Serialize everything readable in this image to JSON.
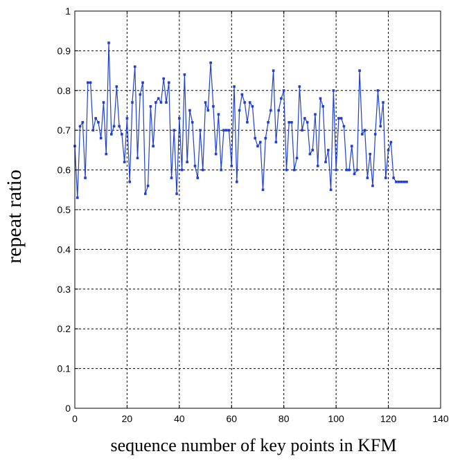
{
  "chart_data": {
    "type": "line",
    "title": "",
    "xlabel": "sequence number of key points in KFM",
    "ylabel": "repeat ratio",
    "xlim": [
      0,
      140
    ],
    "ylim": [
      0,
      1
    ],
    "xticks": [
      0,
      20,
      40,
      60,
      80,
      100,
      120,
      140
    ],
    "yticks": [
      0,
      0.1,
      0.2,
      0.3,
      0.4,
      0.5,
      0.6,
      0.7,
      0.8,
      0.9,
      1
    ],
    "xtick_labels": [
      "0",
      "20",
      "40",
      "60",
      "80",
      "100",
      "120",
      "140"
    ],
    "ytick_labels": [
      "0",
      "0.1",
      "0.2",
      "0.3",
      "0.4",
      "0.5",
      "0.6",
      "0.7",
      "0.8",
      "0.9",
      "1"
    ],
    "grid": true,
    "line_color": "#1f3fd0",
    "series": [
      {
        "marker": "square",
        "x": [
          0,
          1,
          2,
          3,
          4,
          5,
          6,
          7,
          8,
          9,
          10,
          11,
          12,
          13,
          14,
          15,
          16,
          17,
          18,
          19,
          20,
          21,
          22,
          23,
          24,
          25,
          26,
          27,
          28,
          29,
          30,
          31,
          32,
          33,
          34,
          35,
          36,
          37,
          38,
          39,
          40,
          41,
          42,
          43,
          44,
          45,
          46,
          47,
          48,
          49,
          50,
          51,
          52,
          53,
          54,
          55,
          56,
          57,
          58,
          59,
          60,
          61,
          62,
          63,
          64,
          65,
          66,
          67,
          68,
          69,
          70,
          71,
          72,
          73,
          74,
          75,
          76,
          77,
          78,
          79,
          80,
          81,
          82,
          83,
          84,
          85,
          86,
          87,
          88,
          89,
          90,
          91,
          92,
          93,
          94,
          95,
          96,
          97,
          98,
          99,
          100,
          101,
          102,
          103,
          104,
          105,
          106,
          107,
          108,
          109,
          110,
          111,
          112,
          113,
          114,
          115,
          116,
          117,
          118,
          119,
          120,
          121,
          122,
          123,
          124,
          125,
          126,
          127
        ],
        "values": [
          0.66,
          0.53,
          0.71,
          0.72,
          0.58,
          0.82,
          0.82,
          0.7,
          0.73,
          0.72,
          0.68,
          0.77,
          0.64,
          0.92,
          0.69,
          0.71,
          0.81,
          0.71,
          0.69,
          0.62,
          0.73,
          0.57,
          0.77,
          0.86,
          0.63,
          0.79,
          0.82,
          0.54,
          0.56,
          0.76,
          0.66,
          0.77,
          0.78,
          0.77,
          0.83,
          0.77,
          0.82,
          0.58,
          0.7,
          0.54,
          0.73,
          0.6,
          0.84,
          0.62,
          0.75,
          0.72,
          0.61,
          0.58,
          0.7,
          0.6,
          0.77,
          0.75,
          0.87,
          0.76,
          0.64,
          0.74,
          0.6,
          0.7,
          0.7,
          0.7,
          0.61,
          0.81,
          0.57,
          0.75,
          0.79,
          0.77,
          0.72,
          0.77,
          0.76,
          0.68,
          0.66,
          0.67,
          0.55,
          0.68,
          0.72,
          0.75,
          0.85,
          0.67,
          0.75,
          0.78,
          0.8,
          0.6,
          0.72,
          0.72,
          0.6,
          0.63,
          0.81,
          0.7,
          0.73,
          0.72,
          0.64,
          0.65,
          0.74,
          0.61,
          0.78,
          0.76,
          0.62,
          0.65,
          0.55,
          0.8,
          0.6,
          0.73,
          0.73,
          0.71,
          0.6,
          0.6,
          0.66,
          0.59,
          0.6,
          0.85,
          0.69,
          0.7,
          0.58,
          0.64,
          0.56,
          0.69,
          0.8,
          0.71,
          0.77,
          0.58,
          0.65,
          0.67,
          0.58,
          0.57,
          0.57,
          0.57,
          0.57,
          0.57
        ]
      }
    ]
  }
}
